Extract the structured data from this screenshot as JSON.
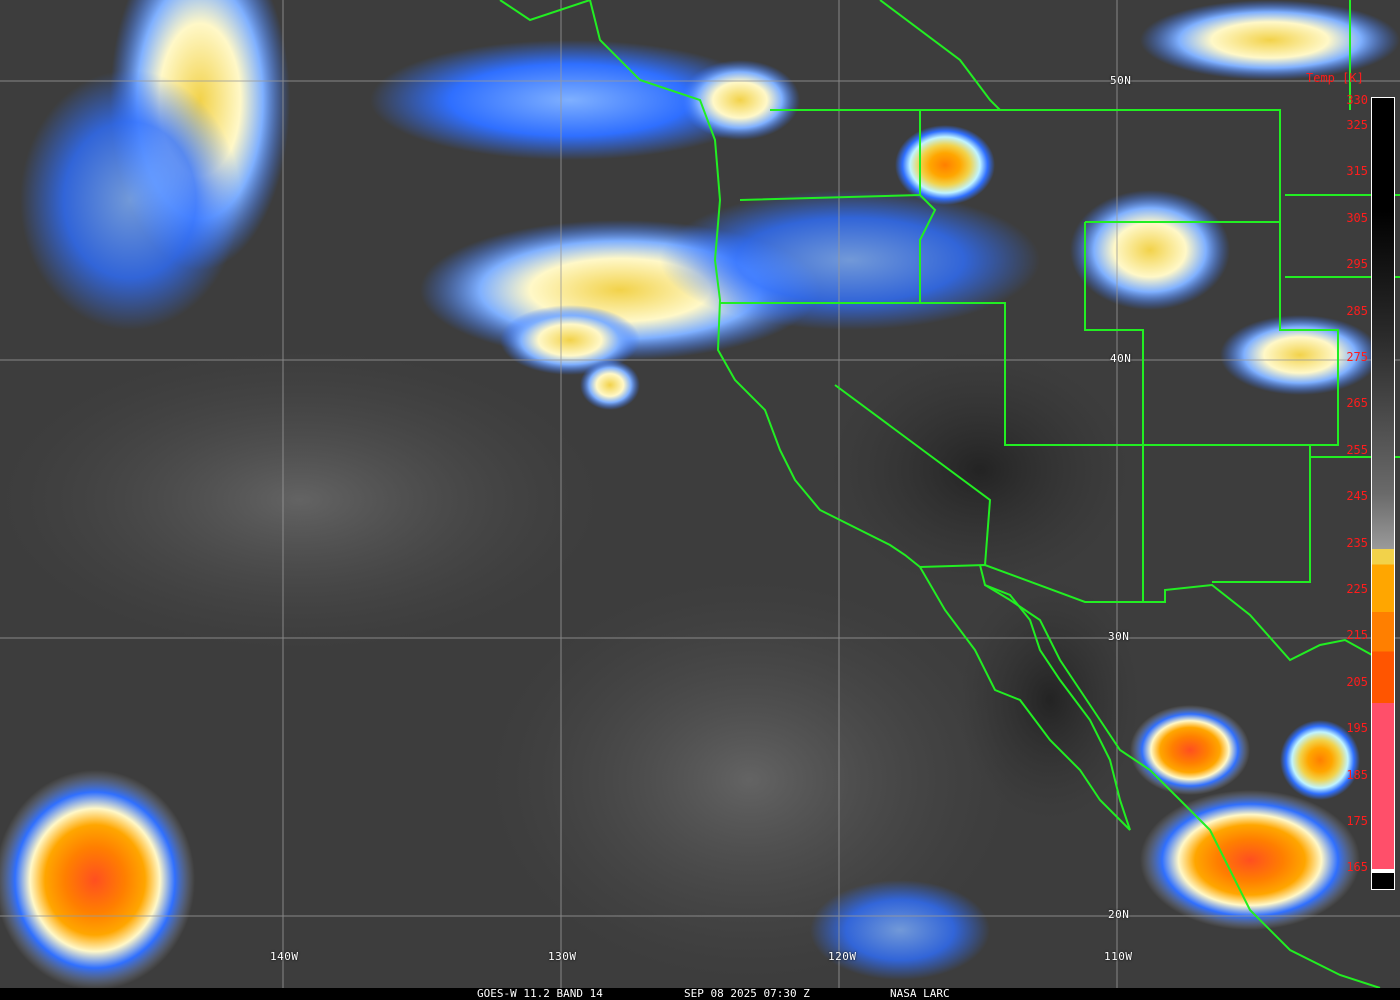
{
  "footer": {
    "satellite_band": "GOES-W 11.2 BAND 14",
    "datetime": "SEP 08 2025 07:30 Z",
    "source": "NASA LARC"
  },
  "colorbar": {
    "title": "Temp [K]",
    "labels": [
      "330",
      "325",
      "315",
      "305",
      "295",
      "285",
      "275",
      "265",
      "255",
      "245",
      "235",
      "225",
      "215",
      "205",
      "195",
      "185",
      "175",
      "165"
    ],
    "colors": {
      "warm": "#000000",
      "cold_blue": "#2f6fff",
      "light_blue": "#7fb0ff",
      "cyan": "#c0f4ff",
      "cream": "#fff8c8",
      "yellow": "#f2d24a",
      "orange": "#ffa600",
      "dark_orange": "#ff7f00",
      "red_orange": "#ff5500",
      "pink": "#ff4f6a"
    }
  },
  "grid": {
    "latitudes": [
      "50N",
      "40N",
      "30N",
      "20N"
    ],
    "longitudes": [
      "140W",
      "130W",
      "120W",
      "110W"
    ]
  },
  "colors": {
    "borders": "#22ee22",
    "grid": "#9a9a9a",
    "label_text": "#ff1c1c"
  }
}
